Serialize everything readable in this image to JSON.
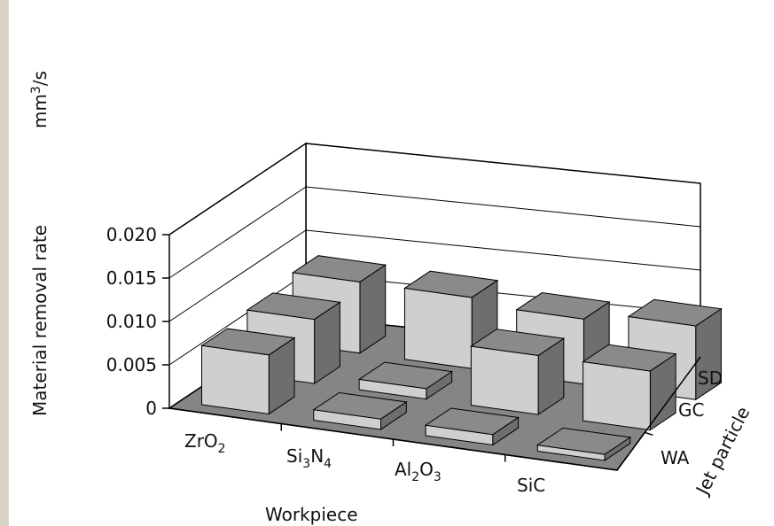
{
  "chart_data": {
    "type": "bar3d",
    "title": "",
    "xlabel": "Workpiece",
    "ylabel": "Jet particle",
    "zlabel": "Material removal rate",
    "zunit": "mm3/s",
    "zlim": [
      0,
      0.02
    ],
    "zticks": [
      "0",
      "0.005",
      "0.010",
      "0.015",
      "0.020"
    ],
    "categories": [
      {
        "base": "ZrO",
        "sub1": "2",
        "mid": "",
        "sub2": ""
      },
      {
        "base": "Si",
        "sub1": "3",
        "mid": "N",
        "sub2": "4"
      },
      {
        "base": "Al",
        "sub1": "2",
        "mid": "O",
        "sub2": "3"
      },
      {
        "base": "SiC",
        "sub1": "",
        "mid": "",
        "sub2": ""
      }
    ],
    "series": [
      {
        "name": "WA",
        "values": [
          0.0068,
          0.0012,
          0.0012,
          0.0007
        ]
      },
      {
        "name": "GC",
        "values": [
          0.0074,
          0.0012,
          0.0068,
          0.0068
        ]
      },
      {
        "name": "SD",
        "values": [
          0.0082,
          0.0082,
          0.0075,
          0.0085
        ]
      }
    ],
    "colors": {
      "bar_front": "#cfcfcf",
      "bar_top": "#8a8a8a",
      "bar_side": "#6e6e6e",
      "floor": "#858585",
      "grid": "#000000"
    }
  }
}
